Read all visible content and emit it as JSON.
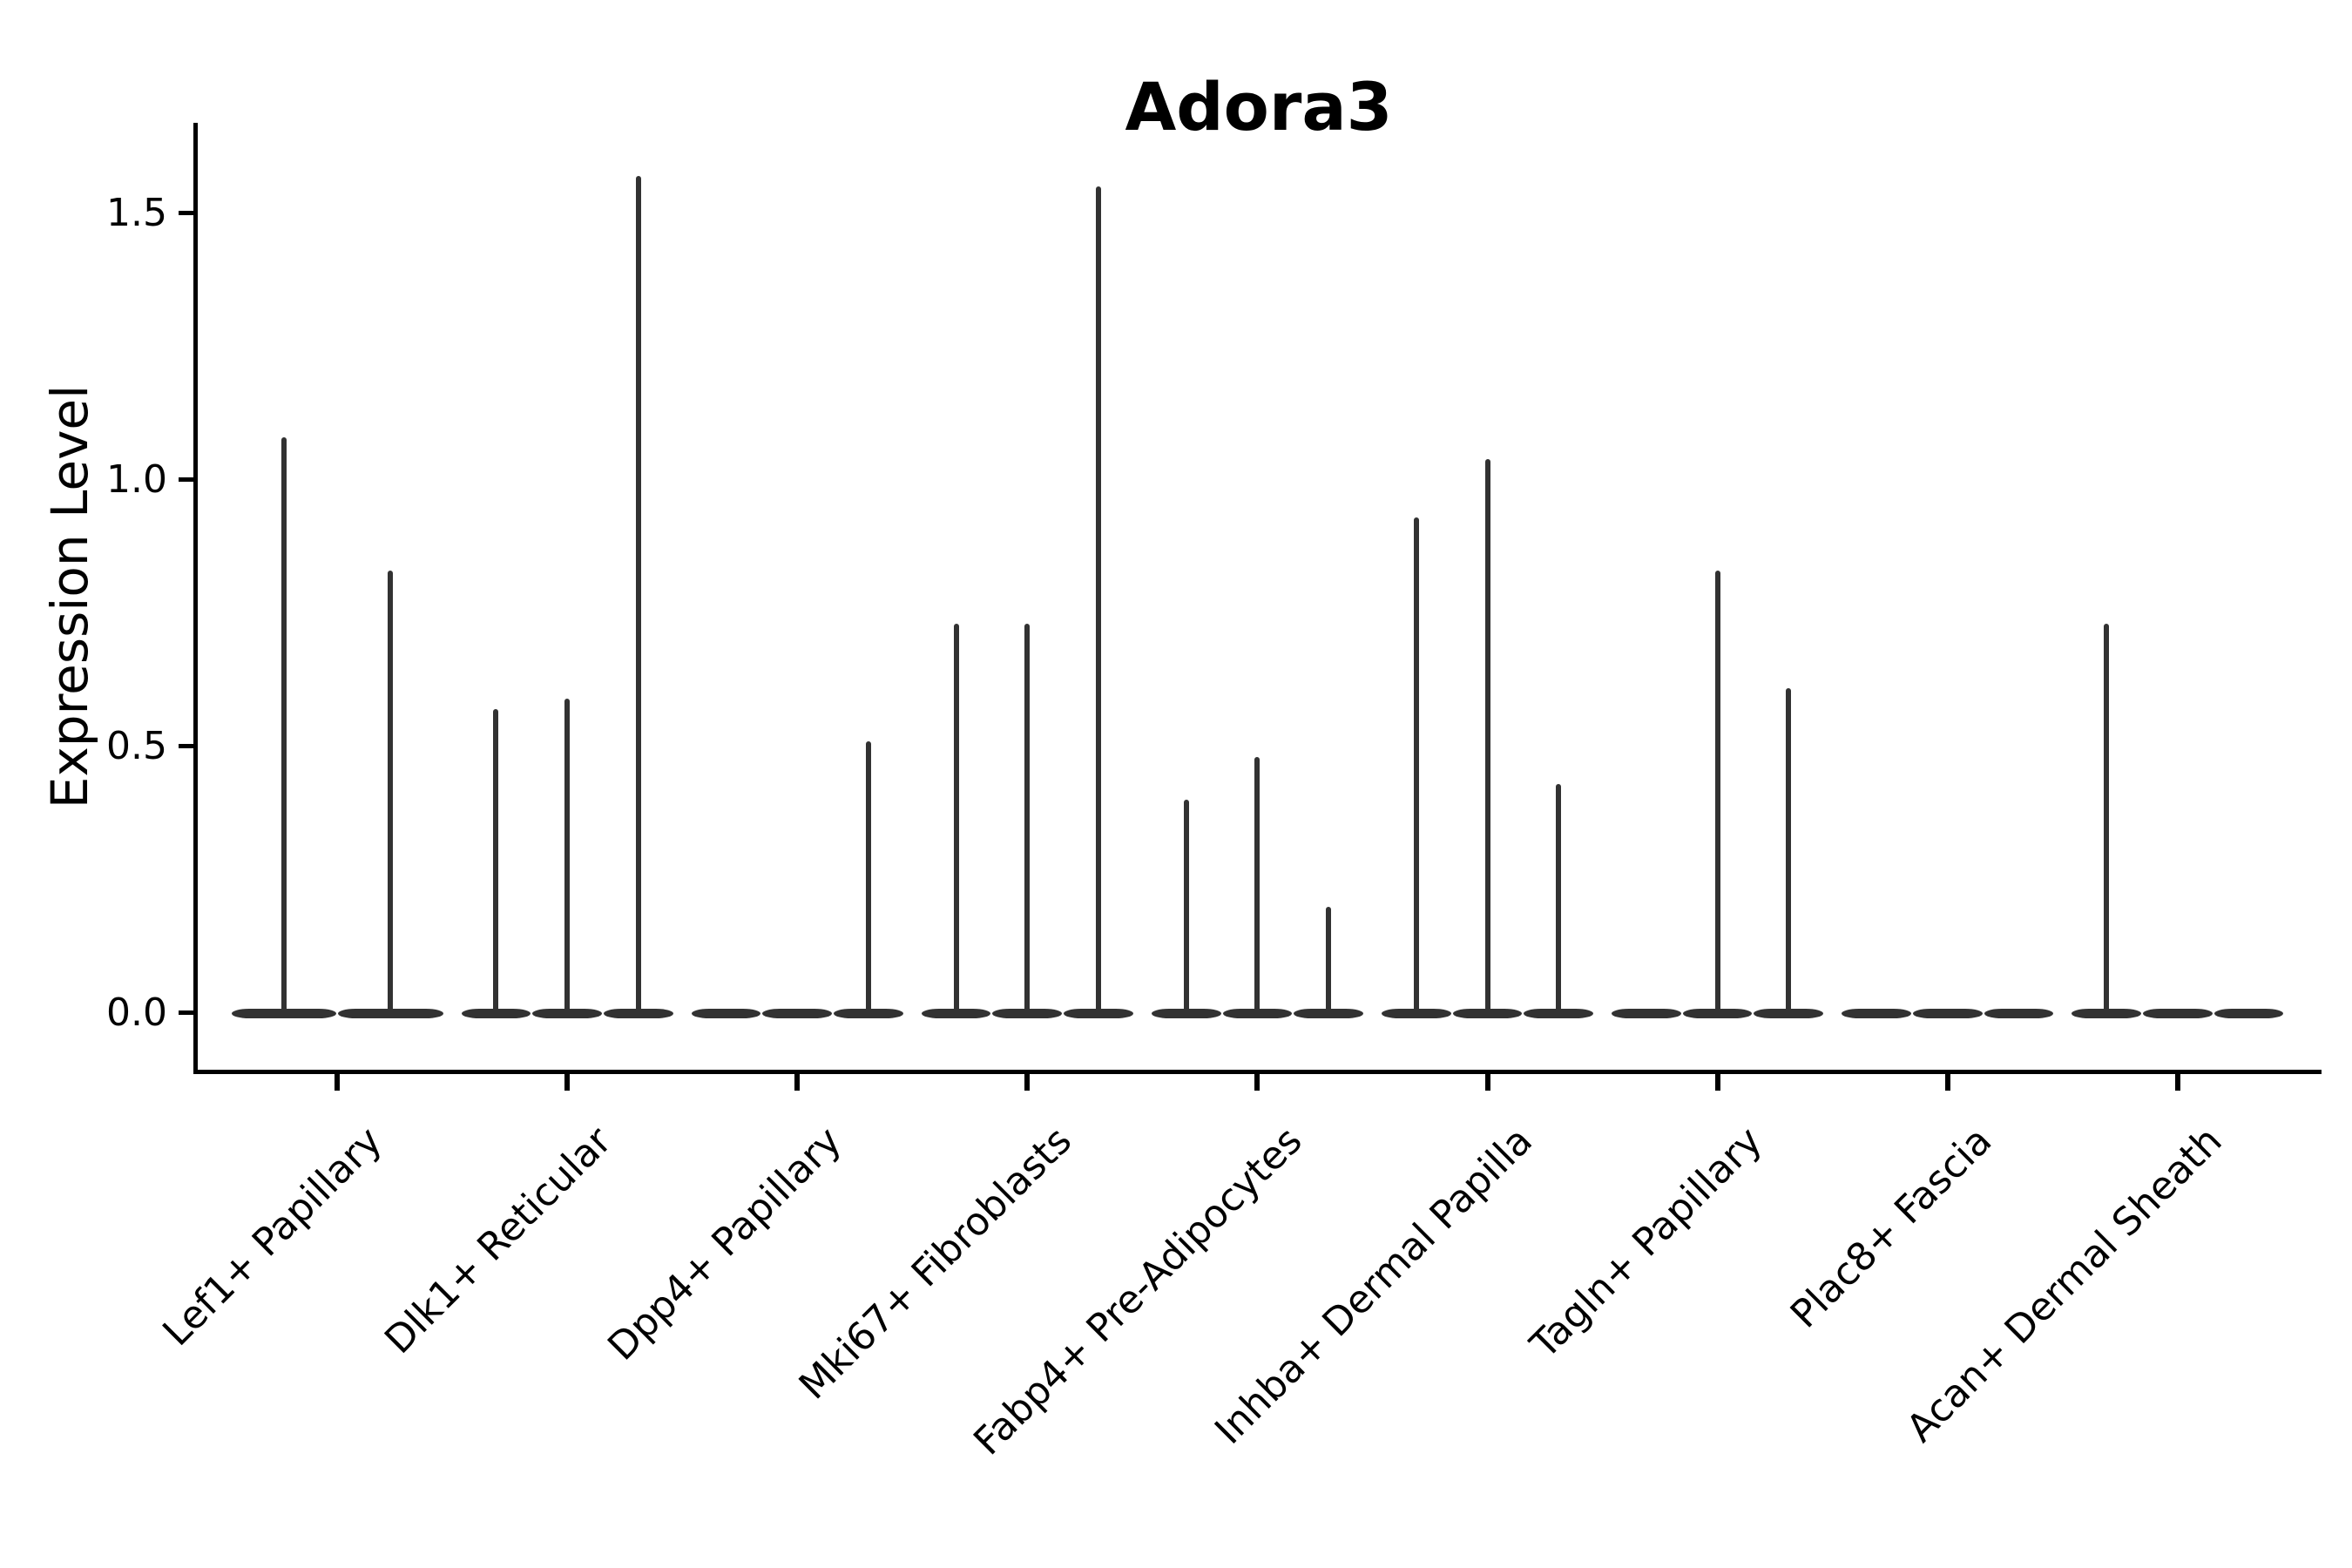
{
  "title": "Adora3",
  "axes": {
    "ylabel": "Expression Level",
    "ytick_labels": [
      "0.0",
      "0.5",
      "1.0",
      "1.5"
    ]
  },
  "chart_data": {
    "type": "violin",
    "title": "Adora3",
    "xlabel": "",
    "ylabel": "Expression Level",
    "ylim": [
      -0.11,
      1.67
    ],
    "yticks": [
      0,
      0.5,
      1.0,
      1.5
    ],
    "ytick_labels": [
      "0.0",
      "0.5",
      "1.0",
      "1.5"
    ],
    "grid": false,
    "legend": "none",
    "violin_color": "#323232",
    "note_shape": "each violin is flat at 0 with a thin central spike reaching its peak value",
    "categories": [
      {
        "label": "Lef1+ Papillary",
        "violin_peaks": [
          1.08,
          0.83
        ]
      },
      {
        "label": "Dlk1+ Reticular",
        "violin_peaks": [
          0.57,
          0.59,
          1.57
        ]
      },
      {
        "label": "Dpp4+ Papillary",
        "violin_peaks": [
          0,
          0,
          0.51
        ]
      },
      {
        "label": "Mki67+ Fibroblasts",
        "violin_peaks": [
          0.73,
          0.73,
          1.55
        ]
      },
      {
        "label": "Fabp4+ Pre-Adipocytes",
        "violin_peaks": [
          0.4,
          0.48,
          0.2
        ]
      },
      {
        "label": "Inhba+ Dermal Papilla",
        "violin_peaks": [
          0.93,
          1.04,
          0.43
        ]
      },
      {
        "label": "Tagln+ Papillary",
        "violin_peaks": [
          0,
          0.83,
          0.61
        ]
      },
      {
        "label": "Plac8+ Fascia",
        "violin_peaks": [
          0,
          0,
          0
        ]
      },
      {
        "label": "Acan+ Dermal Sheath",
        "violin_peaks": [
          0.73,
          0,
          0
        ]
      }
    ]
  }
}
